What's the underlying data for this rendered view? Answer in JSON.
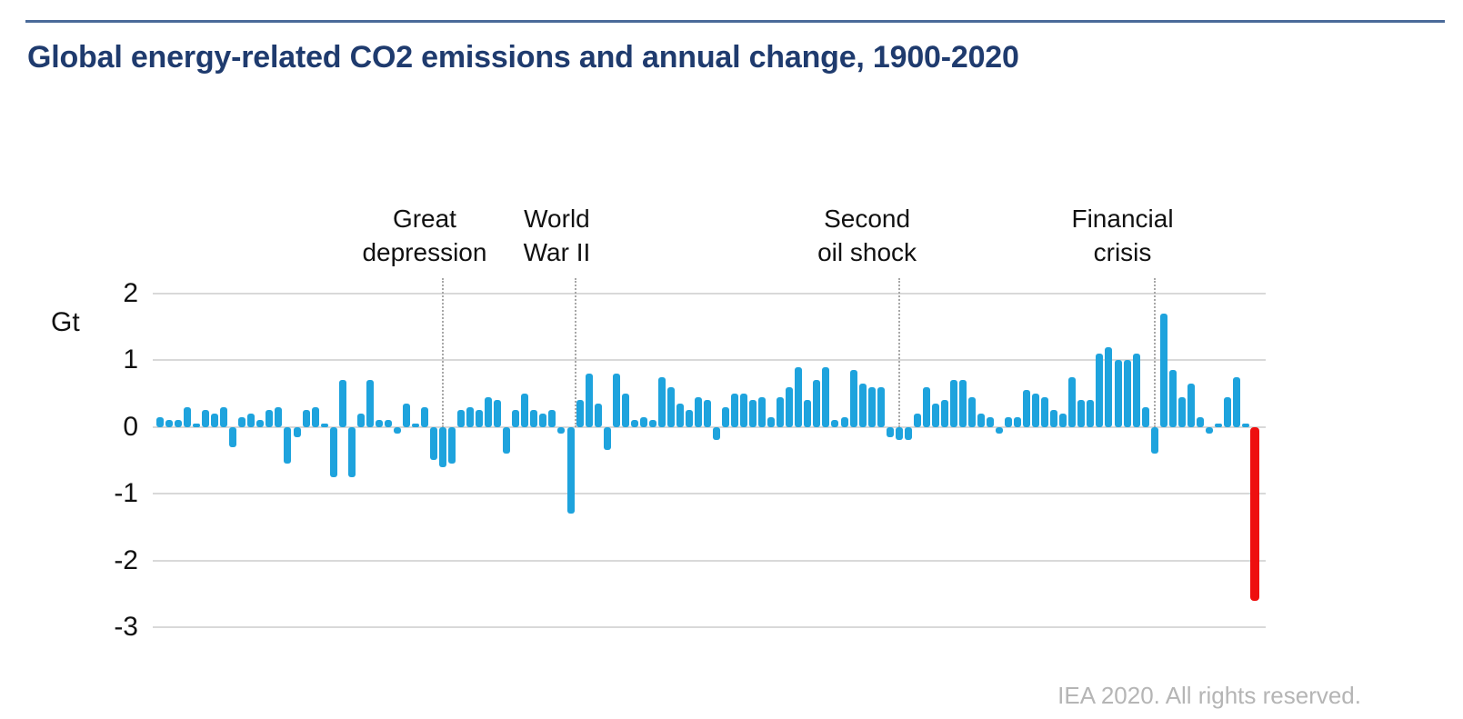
{
  "header": {
    "title": "Global energy-related CO2 emissions and annual change, 1900-2020"
  },
  "footer": {
    "credit": "IEA 2020. All rights reserved."
  },
  "chart_data": {
    "type": "bar",
    "title": "Global energy-related CO2 emissions and annual change, 1900-2020",
    "unit_label": "Gt",
    "ylabel": "Gt",
    "ylim": [
      -3,
      2
    ],
    "yticks": [
      2,
      1,
      0,
      -1,
      -2,
      -3
    ],
    "grid": "horizontal",
    "x_axis_labels": "none",
    "legend": "none",
    "bar_color": "#1ea3dd",
    "highlight_year": 2020,
    "highlight_color": "#ee0f0f",
    "years": [
      1900,
      1901,
      1902,
      1903,
      1904,
      1905,
      1906,
      1907,
      1908,
      1909,
      1910,
      1911,
      1912,
      1913,
      1914,
      1915,
      1916,
      1917,
      1918,
      1919,
      1920,
      1921,
      1922,
      1923,
      1924,
      1925,
      1926,
      1927,
      1928,
      1929,
      1930,
      1931,
      1932,
      1933,
      1934,
      1935,
      1936,
      1937,
      1938,
      1939,
      1940,
      1941,
      1942,
      1943,
      1944,
      1945,
      1946,
      1947,
      1948,
      1949,
      1950,
      1951,
      1952,
      1953,
      1954,
      1955,
      1956,
      1957,
      1958,
      1959,
      1960,
      1961,
      1962,
      1963,
      1964,
      1965,
      1966,
      1967,
      1968,
      1969,
      1970,
      1971,
      1972,
      1973,
      1974,
      1975,
      1976,
      1977,
      1978,
      1979,
      1980,
      1981,
      1982,
      1983,
      1984,
      1985,
      1986,
      1987,
      1988,
      1989,
      1990,
      1991,
      1992,
      1993,
      1994,
      1995,
      1996,
      1997,
      1998,
      1999,
      2000,
      2001,
      2002,
      2003,
      2004,
      2005,
      2006,
      2007,
      2008,
      2009,
      2010,
      2011,
      2012,
      2013,
      2014,
      2015,
      2016,
      2017,
      2018,
      2019,
      2020
    ],
    "values": [
      0.15,
      0.1,
      0.1,
      0.3,
      0.05,
      0.25,
      0.2,
      0.3,
      -0.3,
      0.15,
      0.2,
      0.1,
      0.25,
      0.3,
      -0.55,
      -0.15,
      0.25,
      0.3,
      0.05,
      -0.75,
      0.7,
      -0.75,
      0.2,
      0.7,
      0.1,
      0.1,
      -0.1,
      0.35,
      0.05,
      0.3,
      -0.5,
      -0.6,
      -0.55,
      0.25,
      0.3,
      0.25,
      0.45,
      0.4,
      -0.4,
      0.25,
      0.5,
      0.25,
      0.2,
      0.25,
      -0.1,
      -1.3,
      0.4,
      0.8,
      0.35,
      -0.35,
      0.8,
      0.5,
      0.1,
      0.15,
      0.1,
      0.75,
      0.6,
      0.35,
      0.25,
      0.45,
      0.4,
      -0.2,
      0.3,
      0.5,
      0.5,
      0.4,
      0.45,
      0.15,
      0.45,
      0.6,
      0.9,
      0.4,
      0.7,
      0.9,
      0.1,
      0.15,
      0.85,
      0.65,
      0.6,
      0.6,
      -0.15,
      -0.2,
      -0.2,
      0.2,
      0.6,
      0.35,
      0.4,
      0.7,
      0.7,
      0.45,
      0.2,
      0.15,
      -0.1,
      0.15,
      0.15,
      0.55,
      0.5,
      0.45,
      0.25,
      0.2,
      0.75,
      0.4,
      0.4,
      1.1,
      1.2,
      1.0,
      1.0,
      1.1,
      0.3,
      -0.4,
      1.7,
      0.85,
      0.45,
      0.65,
      0.15,
      -0.1,
      0.05,
      0.45,
      0.75,
      0.05,
      -2.6
    ],
    "annotations": [
      {
        "label": "Great depression",
        "lines": [
          "Great",
          "depression"
        ],
        "line_year": 1931,
        "label_year": 1929.0
      },
      {
        "label": "World War II",
        "lines": [
          "World",
          "War II"
        ],
        "line_year": 1945.5,
        "label_year": 1943.5
      },
      {
        "label": "Second oil shock",
        "lines": [
          "Second",
          "oil shock"
        ],
        "line_year": 1981,
        "label_year": 1977.5
      },
      {
        "label": "Financial crisis",
        "lines": [
          "Financial",
          "crisis"
        ],
        "line_year": 2009,
        "label_year": 2005.5
      }
    ]
  }
}
